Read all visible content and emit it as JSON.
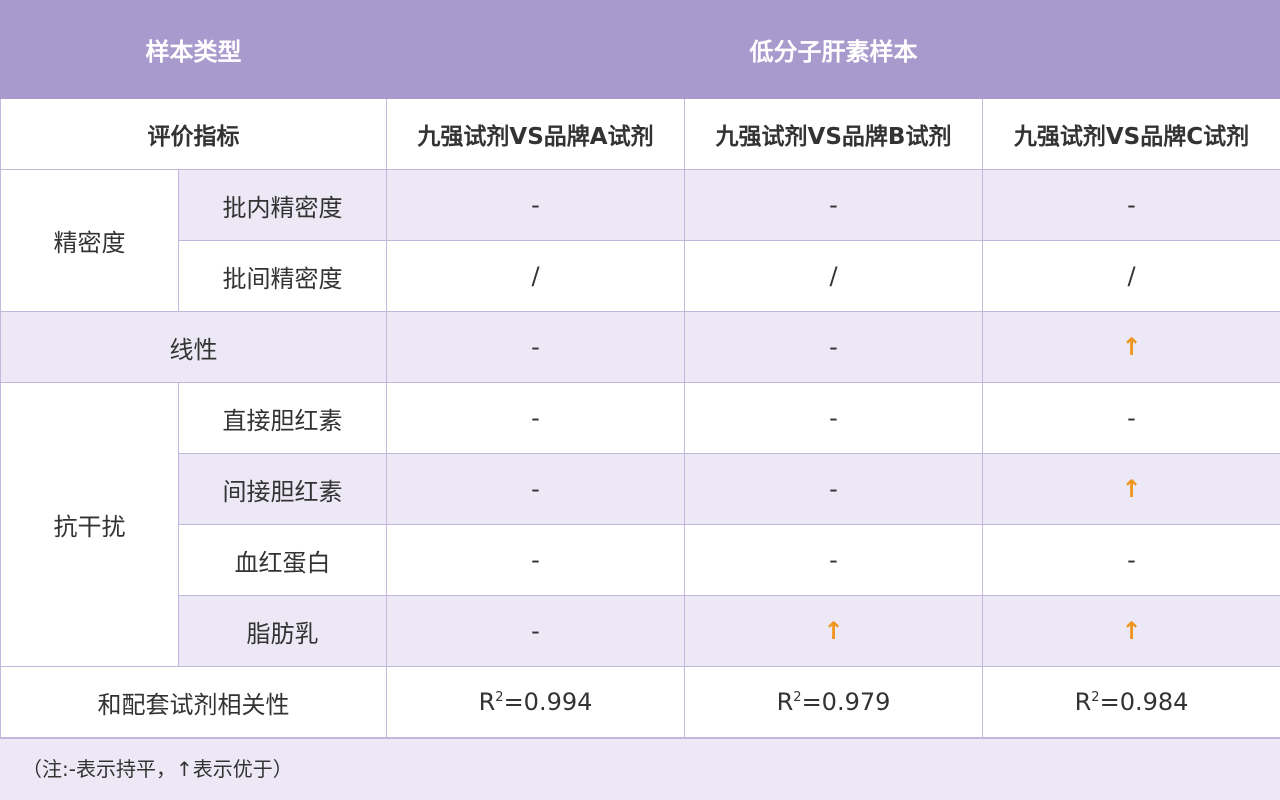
{
  "header": {
    "sample_type_label": "样本类型",
    "sample_type_value": "低分子肝素样本"
  },
  "subheader": {
    "metric_label": "评价指标",
    "columns": [
      "九强试剂VS品牌A试剂",
      "九强试剂VS品牌B试剂",
      "九强试剂VS品牌C试剂"
    ]
  },
  "groups": {
    "precision": "精密度",
    "interference": "抗干扰"
  },
  "rows": [
    {
      "label": "批内精密度",
      "values": [
        "-",
        "-",
        "-"
      ]
    },
    {
      "label": "批间精密度",
      "values": [
        "/",
        "/",
        "/"
      ]
    },
    {
      "label": "线性",
      "values": [
        "-",
        "-",
        "↑"
      ]
    },
    {
      "label": "直接胆红素",
      "values": [
        "-",
        "-",
        "-"
      ]
    },
    {
      "label": "间接胆红素",
      "values": [
        "-",
        "-",
        "↑"
      ]
    },
    {
      "label": "血红蛋白",
      "values": [
        "-",
        "-",
        "-"
      ]
    },
    {
      "label": "脂肪乳",
      "values": [
        "-",
        "↑",
        "↑"
      ]
    }
  ],
  "correlation": {
    "label": "和配套试剂相关性",
    "prefix": "R",
    "sup": "2",
    "values": [
      "=0.994",
      "=0.979",
      "=0.984"
    ]
  },
  "note": "（注:-表示持平，↑表示优于）",
  "colors": {
    "header": "#a99acd",
    "row_shade": "#ece8f5",
    "arrow": "#f0961e"
  }
}
